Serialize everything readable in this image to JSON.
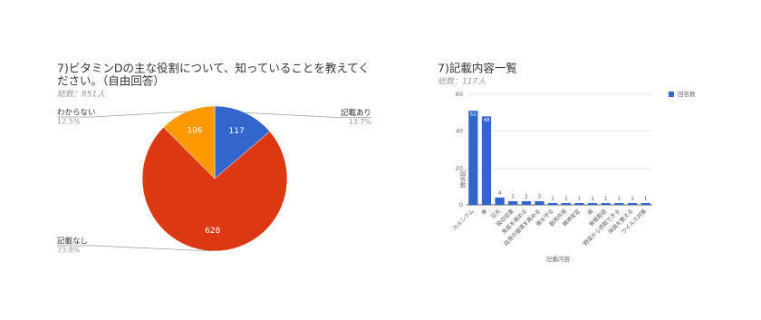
{
  "chart_data": [
    {
      "type": "pie",
      "title": [
        "7)ビタミンDの主な役割について、知っていることを教えてく",
        "ださい。（自由回答）"
      ],
      "subtitle": "総数：851人",
      "categories": [
        "記載あり",
        "記載なし",
        "わからない"
      ],
      "values": [
        117,
        628,
        106
      ],
      "percent_labels": [
        "13.7%",
        "73.8%",
        "12.5%"
      ],
      "colors": [
        "#3366cc",
        "#dc3912",
        "#ff9900"
      ]
    },
    {
      "type": "bar",
      "title": "7)記載内容一覧",
      "subtitle": "総数：117人",
      "x_label": "記載内容",
      "y_label": "回答数",
      "legend": "回答数",
      "color": "#3366cc",
      "categories": [
        "カルシウム",
        "骨",
        "日光",
        "吸収促進",
        "免疫を高める",
        "血液の循環を高める",
        "骨を守る",
        "筋肉作用",
        "精神安定",
        "歯",
        "骨粗鬆症",
        "野菜から摂取できる",
        "体調を整える",
        "ウイルス対策"
      ],
      "values": [
        51,
        48,
        4,
        2,
        2,
        2,
        1,
        1,
        1,
        1,
        1,
        1,
        1,
        1
      ],
      "ylim": [
        0,
        60
      ],
      "yticks": [
        0,
        20,
        40,
        60
      ],
      "grid": true
    }
  ]
}
